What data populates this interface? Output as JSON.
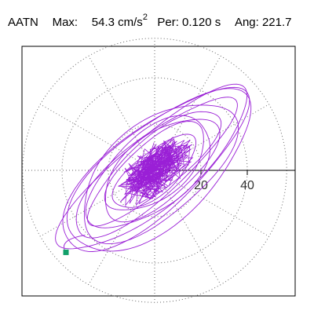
{
  "header": {
    "station": "AATN",
    "max_label": "Max:",
    "max_value": "54.3",
    "max_unit": "cm/s",
    "max_unit_exp": "2",
    "per_label": "Per:",
    "per_value": "0.120 s",
    "ang_label": "Ang:",
    "ang_value": "221.7"
  },
  "chart_data": {
    "type": "line",
    "title": "",
    "xlabel": "",
    "ylabel": "",
    "xlim": [
      -60,
      60
    ],
    "ylim": [
      -60,
      60
    ],
    "polar_rings": [
      20,
      40
    ],
    "radial_spokes_deg": [
      0,
      30,
      60,
      90,
      120,
      150,
      180,
      210,
      240,
      270,
      300,
      330
    ],
    "x_ticks": [
      20,
      40
    ],
    "tick_labels": [
      "20",
      "40"
    ],
    "orbit": {
      "major_axis_deg": 40,
      "max_radius": 54.3,
      "end_point": [
        -38.3,
        -35.4
      ]
    },
    "series": [
      {
        "values_desc": "particle-motion trace",
        "color": "#9a1fd6"
      }
    ],
    "colors": {
      "trace": "#9a1fd6",
      "end_marker": "#12a06a",
      "grid": "#666666"
    }
  }
}
